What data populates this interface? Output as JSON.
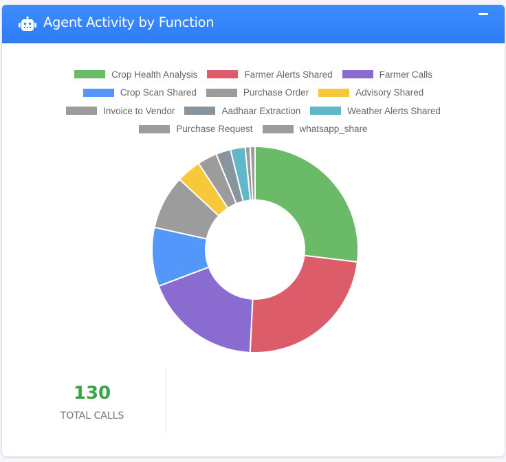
{
  "header": {
    "title": "Agent Activity by Function",
    "icon": "robot-icon",
    "collapse_icon": "minus-icon",
    "background_color": "#3a87fb"
  },
  "legend": {
    "rows": [
      [
        0,
        1,
        2
      ],
      [
        3,
        4,
        5
      ],
      [
        6,
        7,
        8
      ],
      [
        9,
        10
      ]
    ]
  },
  "stats": {
    "total_value": "130",
    "total_label": "TOTAL CALLS",
    "total_color": "#3aa348"
  },
  "chart_data": {
    "type": "pie",
    "variant": "doughnut",
    "title": "Agent Activity by Function",
    "legend_position": "top",
    "total": 130,
    "categories": [
      "Crop Health Analysis",
      "Farmer Alerts Shared",
      "Farmer Calls",
      "Crop Scan Shared",
      "Purchase Order",
      "Advisory Shared",
      "Invoice to Vendor",
      "Aadhaar Extraction",
      "Weather Alerts Shared",
      "Purchase Request",
      "whatsapp_share"
    ],
    "values": [
      35,
      31,
      24,
      12,
      11,
      5,
      4,
      3,
      3,
      1,
      1
    ],
    "colors": [
      "#6aba67",
      "#dc5c6a",
      "#8a6bcf",
      "#5497fb",
      "#9c9c9c",
      "#f7c93a",
      "#9c9c9c",
      "#88949e",
      "#5fb7c9",
      "#9c9c9c",
      "#9c9c9c"
    ]
  }
}
